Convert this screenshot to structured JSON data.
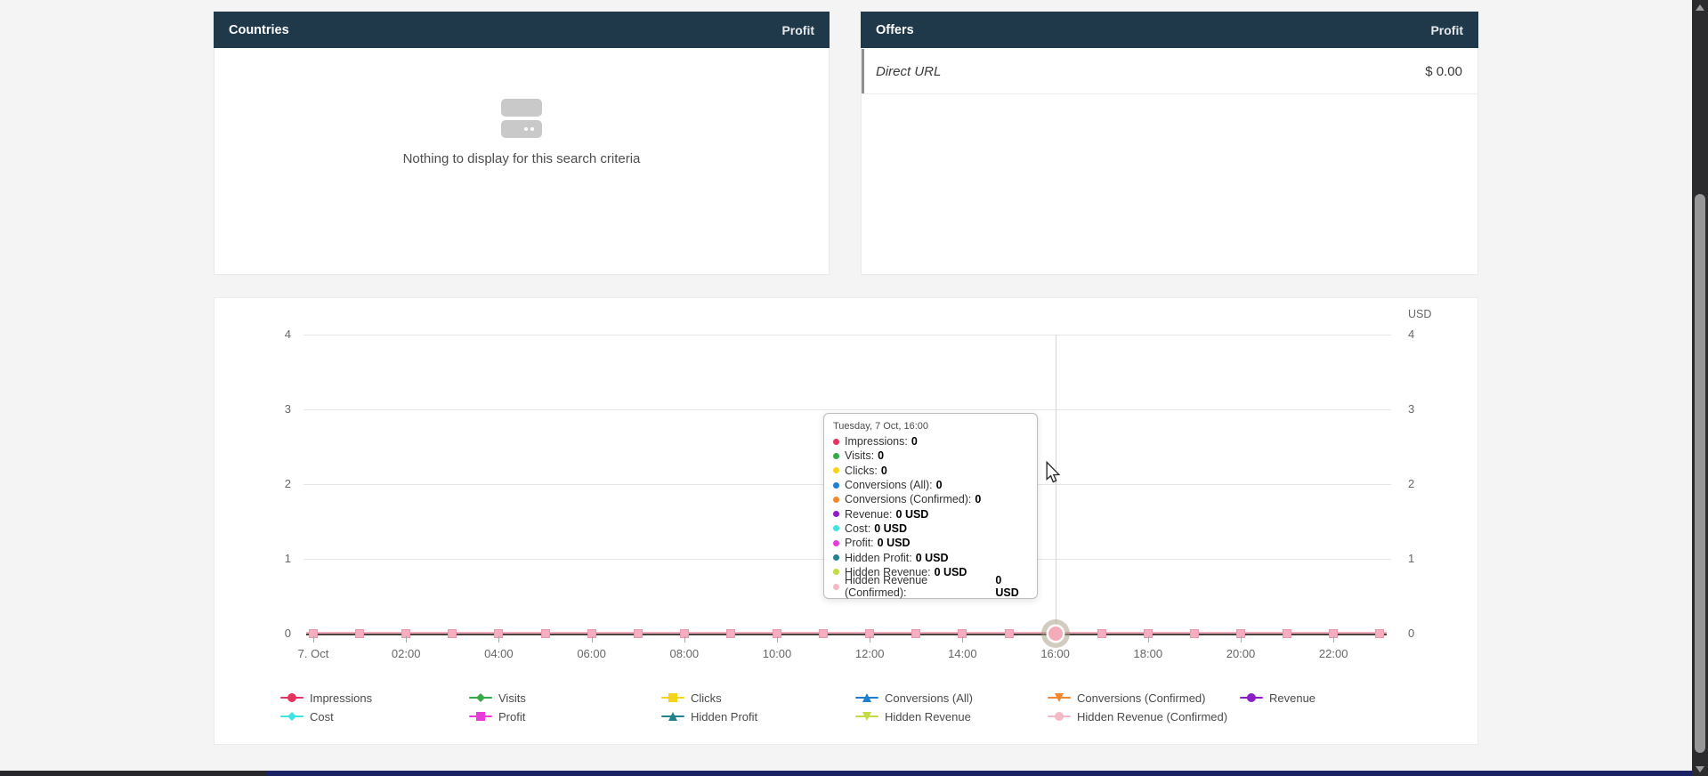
{
  "panels": {
    "countries": {
      "title": "Countries",
      "metric": "Profit",
      "empty_text": "Nothing to display for this search criteria"
    },
    "offers": {
      "title": "Offers",
      "metric": "Profit",
      "rows": [
        {
          "label": "Direct URL",
          "value": "$ 0.00"
        }
      ]
    }
  },
  "chart_data": {
    "type": "line",
    "unit_label": "USD",
    "ylim": [
      0,
      4
    ],
    "yticks": [
      4,
      3,
      2,
      1,
      0
    ],
    "grid": true,
    "x_tick_labels": [
      "7. Oct",
      "02:00",
      "04:00",
      "06:00",
      "08:00",
      "10:00",
      "12:00",
      "14:00",
      "16:00",
      "18:00",
      "20:00",
      "22:00"
    ],
    "points_per_series": 24,
    "x_range": "7 Oct 00:00 - 23:00 hourly",
    "hover_point": {
      "date": "Tuesday, 7 Oct",
      "time": "16:00",
      "index": 16
    },
    "legend_position": "bottom",
    "series": [
      {
        "name": "Impressions",
        "color": "#e4335f",
        "marker": "circle",
        "values": [
          0,
          0,
          0,
          0,
          0,
          0,
          0,
          0,
          0,
          0,
          0,
          0,
          0,
          0,
          0,
          0,
          0,
          0,
          0,
          0,
          0,
          0,
          0,
          0
        ]
      },
      {
        "name": "Visits",
        "color": "#36a94a",
        "marker": "diamond",
        "values": [
          0,
          0,
          0,
          0,
          0,
          0,
          0,
          0,
          0,
          0,
          0,
          0,
          0,
          0,
          0,
          0,
          0,
          0,
          0,
          0,
          0,
          0,
          0,
          0
        ]
      },
      {
        "name": "Clicks",
        "color": "#f5d417",
        "marker": "square",
        "values": [
          0,
          0,
          0,
          0,
          0,
          0,
          0,
          0,
          0,
          0,
          0,
          0,
          0,
          0,
          0,
          0,
          0,
          0,
          0,
          0,
          0,
          0,
          0,
          0
        ]
      },
      {
        "name": "Conversions (All)",
        "color": "#1e7fd0",
        "marker": "triangle",
        "values": [
          0,
          0,
          0,
          0,
          0,
          0,
          0,
          0,
          0,
          0,
          0,
          0,
          0,
          0,
          0,
          0,
          0,
          0,
          0,
          0,
          0,
          0,
          0,
          0
        ]
      },
      {
        "name": "Conversions (Confirmed)",
        "color": "#f1882f",
        "marker": "triangle-down",
        "values": [
          0,
          0,
          0,
          0,
          0,
          0,
          0,
          0,
          0,
          0,
          0,
          0,
          0,
          0,
          0,
          0,
          0,
          0,
          0,
          0,
          0,
          0,
          0,
          0
        ]
      },
      {
        "name": "Revenue",
        "color": "#8e1cc4",
        "marker": "circle",
        "values": [
          0,
          0,
          0,
          0,
          0,
          0,
          0,
          0,
          0,
          0,
          0,
          0,
          0,
          0,
          0,
          0,
          0,
          0,
          0,
          0,
          0,
          0,
          0,
          0
        ]
      },
      {
        "name": "Cost",
        "color": "#3fe3e3",
        "marker": "diamond",
        "values": [
          0,
          0,
          0,
          0,
          0,
          0,
          0,
          0,
          0,
          0,
          0,
          0,
          0,
          0,
          0,
          0,
          0,
          0,
          0,
          0,
          0,
          0,
          0,
          0
        ]
      },
      {
        "name": "Profit",
        "color": "#e93bdc",
        "marker": "square",
        "values": [
          0,
          0,
          0,
          0,
          0,
          0,
          0,
          0,
          0,
          0,
          0,
          0,
          0,
          0,
          0,
          0,
          0,
          0,
          0,
          0,
          0,
          0,
          0,
          0
        ]
      },
      {
        "name": "Hidden Profit",
        "color": "#23808d",
        "marker": "triangle",
        "values": [
          0,
          0,
          0,
          0,
          0,
          0,
          0,
          0,
          0,
          0,
          0,
          0,
          0,
          0,
          0,
          0,
          0,
          0,
          0,
          0,
          0,
          0,
          0,
          0
        ]
      },
      {
        "name": "Hidden Revenue",
        "color": "#c4dc43",
        "marker": "triangle-down",
        "values": [
          0,
          0,
          0,
          0,
          0,
          0,
          0,
          0,
          0,
          0,
          0,
          0,
          0,
          0,
          0,
          0,
          0,
          0,
          0,
          0,
          0,
          0,
          0,
          0
        ]
      },
      {
        "name": "Hidden Revenue (Confirmed)",
        "color": "#f4b9c4",
        "marker": "circle",
        "values": [
          0,
          0,
          0,
          0,
          0,
          0,
          0,
          0,
          0,
          0,
          0,
          0,
          0,
          0,
          0,
          0,
          0,
          0,
          0,
          0,
          0,
          0,
          0,
          0
        ]
      }
    ],
    "point_marker_color": "#f6adbd"
  },
  "tooltip": {
    "header": "Tuesday, 7 Oct, 16:00",
    "rows": [
      {
        "label": "Impressions",
        "value": "0"
      },
      {
        "label": "Visits",
        "value": "0"
      },
      {
        "label": "Clicks",
        "value": "0"
      },
      {
        "label": "Conversions (All)",
        "value": "0"
      },
      {
        "label": "Conversions (Confirmed)",
        "value": "0"
      },
      {
        "label": "Revenue",
        "value": "0 USD"
      },
      {
        "label": "Cost",
        "value": "0 USD"
      },
      {
        "label": "Profit",
        "value": "0 USD"
      },
      {
        "label": "Hidden Profit",
        "value": "0 USD"
      },
      {
        "label": "Hidden Revenue",
        "value": "0 USD"
      },
      {
        "label": "Hidden Revenue (Confirmed)",
        "value": "0 USD"
      }
    ]
  },
  "colors": {
    "panel_header_bg": "#20394a",
    "page_bg": "#f4f4f4",
    "gridline": "#e6e6e6",
    "zero_line_dark": "#4b4540",
    "zero_line_pink": "#f0a9bb"
  }
}
